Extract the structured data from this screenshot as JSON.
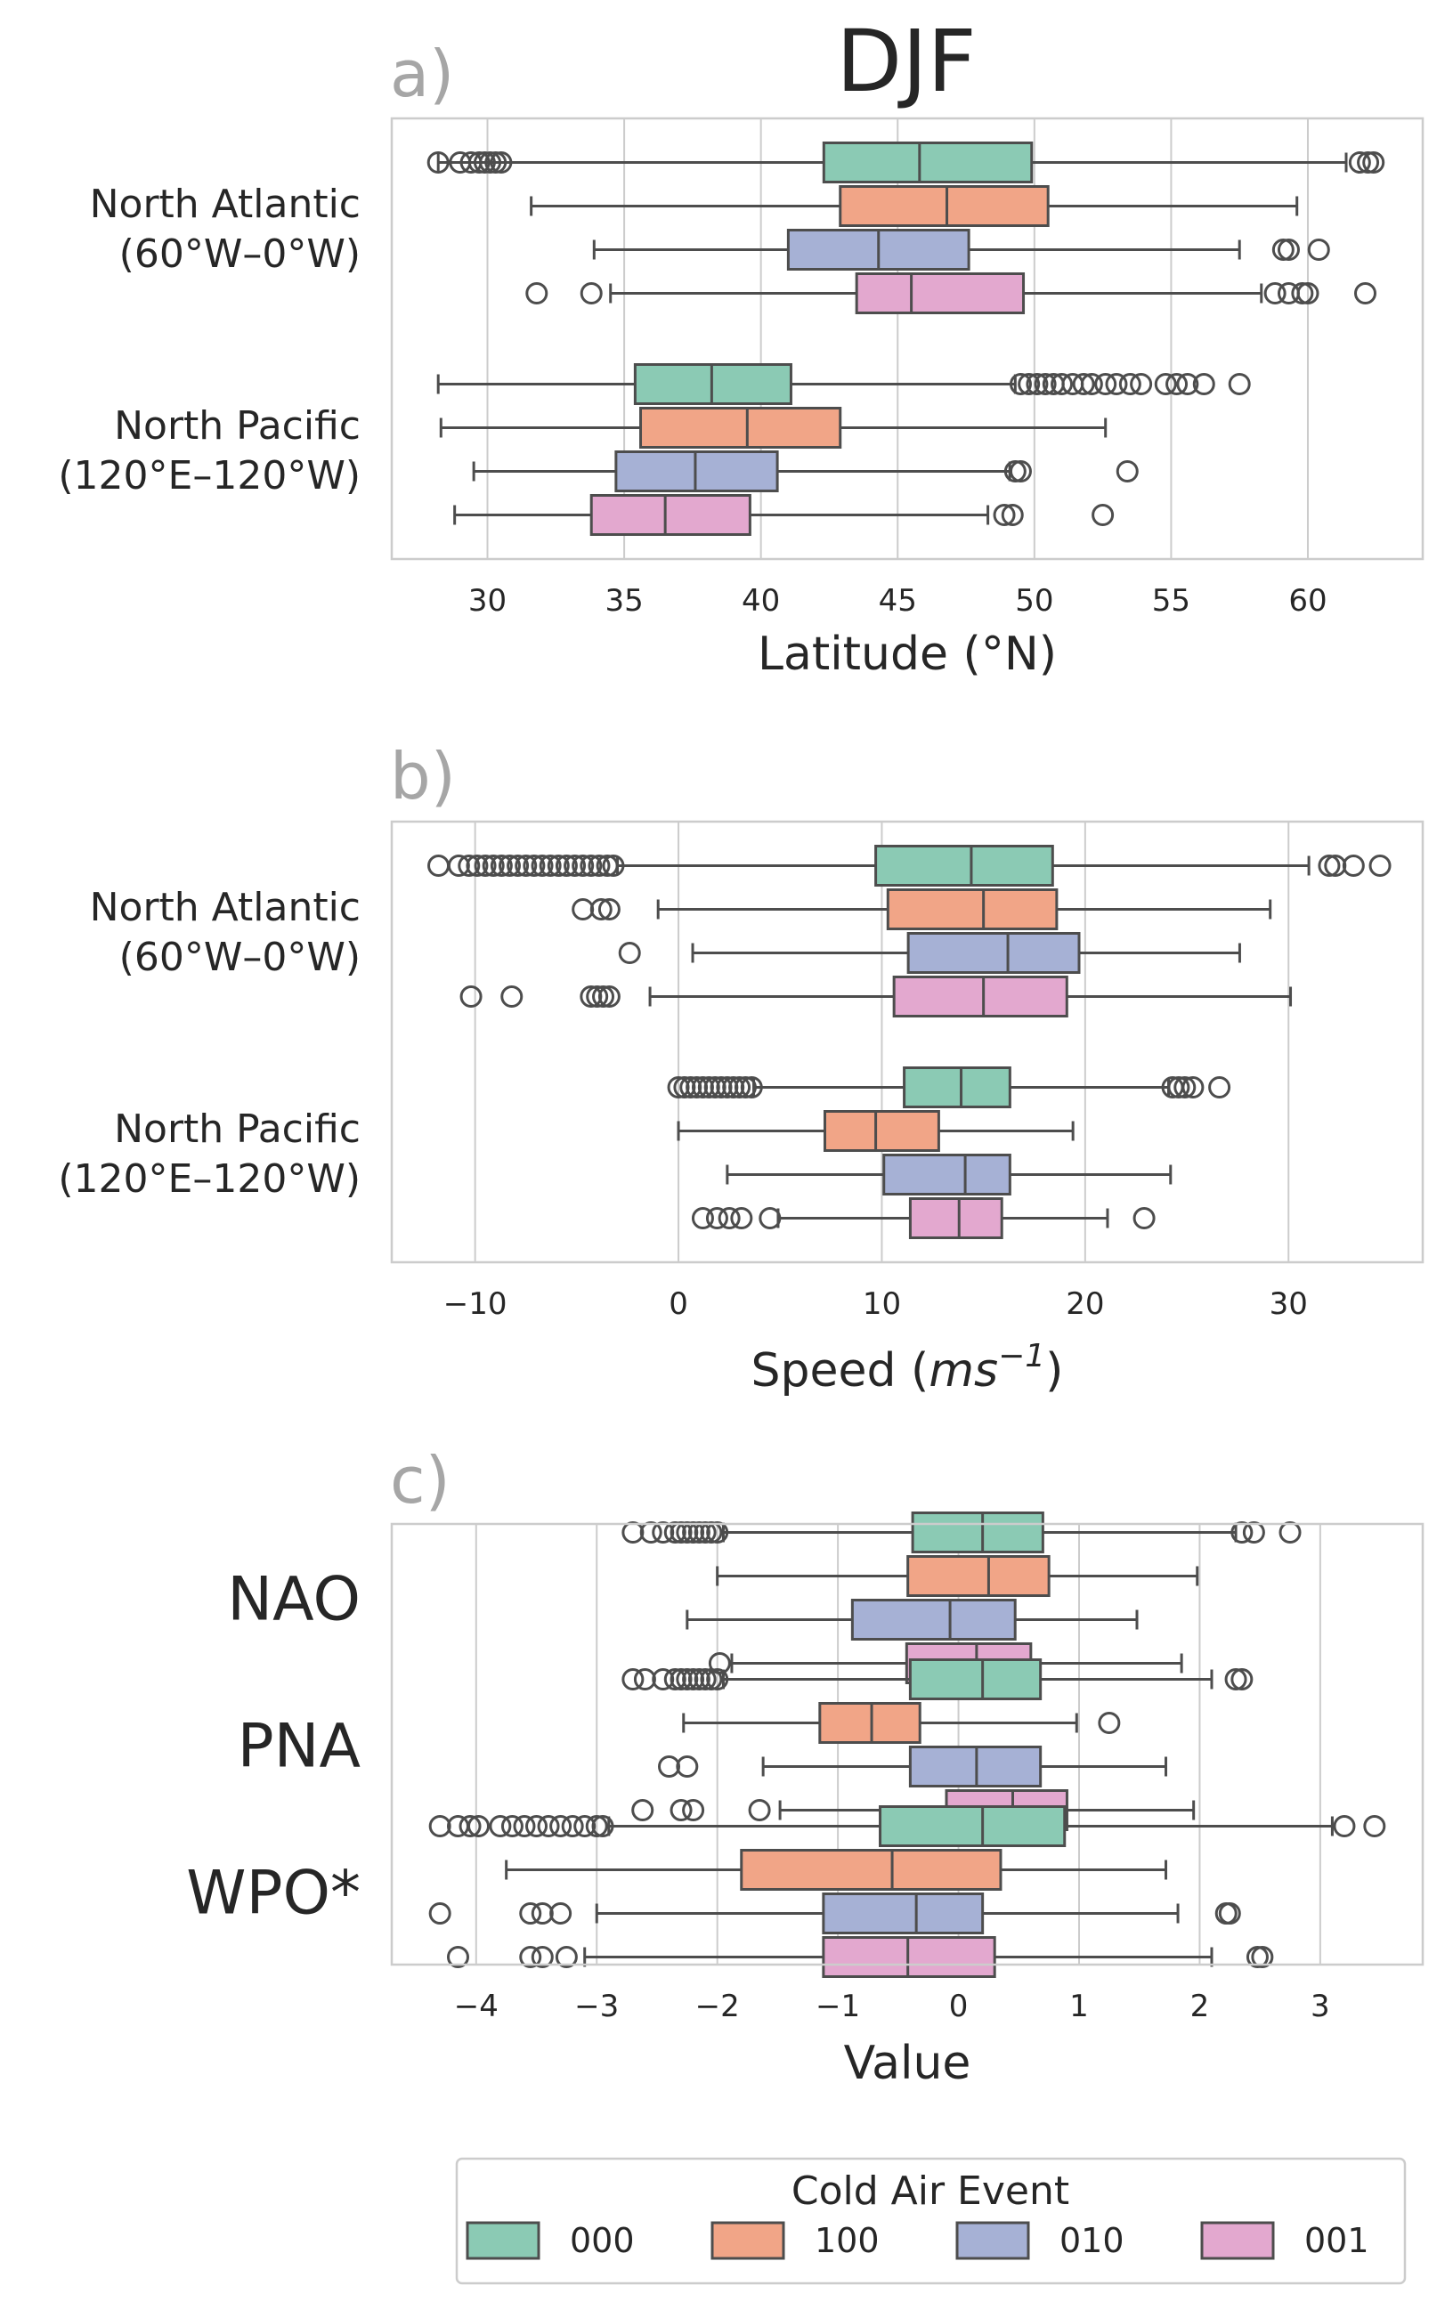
{
  "figure_title": "DJF",
  "colors": {
    "000": "#8bcab4",
    "100": "#f1a587",
    "010": "#a6b1d5",
    "001": "#e3a8cf",
    "grid": "#cccccc",
    "outline": "#4d4d4d"
  },
  "legend": {
    "title": "Cold Air Event",
    "entries": [
      "000",
      "100",
      "010",
      "001"
    ]
  },
  "chart_data": [
    {
      "type": "box",
      "panel_label": "a)",
      "title": "DJF",
      "xlabel": "Latitude (°N)",
      "ylabel": "",
      "xlim": [
        26.5,
        64.2
      ],
      "xticks": [
        30,
        35,
        40,
        45,
        50,
        55,
        60
      ],
      "xtick_labels": [
        "30",
        "35",
        "40",
        "45",
        "50",
        "55",
        "60"
      ],
      "grid": true,
      "orientation": "horizontal",
      "series_names": [
        "000",
        "100",
        "010",
        "001"
      ],
      "categories": [
        {
          "label_lines": [
            "North Atlantic",
            "(60°W–0°W)"
          ],
          "boxes": [
            {
              "series": "000",
              "whislo": 28.2,
              "q1": 42.3,
              "med": 45.8,
              "q3": 49.9,
              "whishi": 61.4,
              "fliers": [
                28.2,
                29.0,
                29.4,
                29.7,
                29.9,
                30.1,
                30.3,
                30.5,
                61.9,
                62.2,
                62.4
              ]
            },
            {
              "series": "100",
              "whislo": 31.6,
              "q1": 42.9,
              "med": 46.8,
              "q3": 50.5,
              "whishi": 59.6,
              "fliers": []
            },
            {
              "series": "010",
              "whislo": 33.9,
              "q1": 41.0,
              "med": 44.3,
              "q3": 47.6,
              "whishi": 57.5,
              "fliers": [
                59.1,
                59.3,
                60.4
              ]
            },
            {
              "series": "001",
              "whislo": 34.5,
              "q1": 43.5,
              "med": 45.5,
              "q3": 49.6,
              "whishi": 58.3,
              "fliers": [
                31.8,
                33.8,
                58.8,
                59.3,
                59.8,
                60.0,
                62.1
              ]
            }
          ]
        },
        {
          "label_lines": [
            "North Pacific",
            "(120°E–120°W)"
          ],
          "boxes": [
            {
              "series": "000",
              "whislo": 28.2,
              "q1": 35.4,
              "med": 38.2,
              "q3": 41.1,
              "whishi": 49.3,
              "fliers": [
                49.5,
                49.8,
                50.1,
                50.4,
                50.7,
                51.0,
                51.4,
                51.8,
                52.1,
                52.6,
                53.0,
                53.5,
                53.9,
                54.8,
                55.2,
                55.6,
                56.2,
                57.5
              ]
            },
            {
              "series": "100",
              "whislo": 28.3,
              "q1": 35.6,
              "med": 39.5,
              "q3": 42.9,
              "whishi": 52.6,
              "fliers": []
            },
            {
              "series": "010",
              "whislo": 29.5,
              "q1": 34.7,
              "med": 37.6,
              "q3": 40.6,
              "whishi": 49.1,
              "fliers": [
                49.3,
                49.5,
                53.4
              ]
            },
            {
              "series": "001",
              "whislo": 28.8,
              "q1": 33.8,
              "med": 36.5,
              "q3": 39.6,
              "whishi": 48.3,
              "fliers": [
                48.9,
                49.2,
                52.5
              ]
            }
          ]
        }
      ]
    },
    {
      "type": "box",
      "panel_label": "b)",
      "title": "",
      "xlabel_prefix": "Speed (",
      "xlabel_italic": "ms",
      "xlabel_sup": "−1",
      "xlabel_suffix": ")",
      "ylabel": "",
      "xlim": [
        -14.1,
        36.6
      ],
      "xticks": [
        -10,
        0,
        10,
        20,
        30
      ],
      "xtick_labels": [
        "−10",
        "0",
        "10",
        "20",
        "30"
      ],
      "grid": true,
      "orientation": "horizontal",
      "series_names": [
        "000",
        "100",
        "010",
        "001"
      ],
      "categories": [
        {
          "label_lines": [
            "North Atlantic",
            "(60°W–0°W)"
          ],
          "boxes": [
            {
              "series": "000",
              "whislo": -3.0,
              "q1": 9.7,
              "med": 14.4,
              "q3": 18.4,
              "whishi": 31.0,
              "fliers": [
                -11.8,
                -10.8,
                -10.3,
                -9.9,
                -9.5,
                -9.1,
                -8.7,
                -8.3,
                -7.9,
                -7.5,
                -7.1,
                -6.7,
                -6.3,
                -5.9,
                -5.5,
                -5.1,
                -4.7,
                -4.3,
                -3.9,
                -3.5,
                -3.2,
                32.0,
                32.3,
                33.2,
                34.5
              ]
            },
            {
              "series": "100",
              "whislo": -1.0,
              "q1": 10.3,
              "med": 15.0,
              "q3": 18.6,
              "whishi": 29.1,
              "fliers": [
                -4.7,
                -3.8,
                -3.4
              ]
            },
            {
              "series": "010",
              "whislo": 0.7,
              "q1": 11.3,
              "med": 16.2,
              "q3": 19.7,
              "whishi": 27.6,
              "fliers": [
                -2.4
              ]
            },
            {
              "series": "001",
              "whislo": -1.4,
              "q1": 10.6,
              "med": 15.0,
              "q3": 19.1,
              "whishi": 30.1,
              "fliers": [
                -10.2,
                -8.2,
                -4.3,
                -4.0,
                -3.7,
                -3.4
              ]
            }
          ]
        },
        {
          "label_lines": [
            "North Pacific",
            "(120°E–120°W)"
          ],
          "boxes": [
            {
              "series": "000",
              "whislo": 3.7,
              "q1": 11.1,
              "med": 13.9,
              "q3": 16.3,
              "whishi": 24.1,
              "fliers": [
                0.0,
                0.3,
                0.6,
                0.9,
                1.2,
                1.5,
                1.8,
                2.1,
                2.4,
                2.7,
                3.0,
                3.3,
                3.6,
                24.3,
                24.6,
                24.9,
                25.3,
                26.6
              ]
            },
            {
              "series": "100",
              "whislo": 0.0,
              "q1": 7.2,
              "med": 9.7,
              "q3": 12.8,
              "whishi": 19.4,
              "fliers": []
            },
            {
              "series": "010",
              "whislo": 2.4,
              "q1": 10.1,
              "med": 14.1,
              "q3": 16.3,
              "whishi": 24.2,
              "fliers": []
            },
            {
              "series": "001",
              "whislo": 4.9,
              "q1": 11.4,
              "med": 13.8,
              "q3": 15.9,
              "whishi": 21.1,
              "fliers": [
                1.2,
                1.9,
                2.5,
                3.1,
                4.5,
                22.9
              ]
            }
          ]
        }
      ]
    },
    {
      "type": "box",
      "panel_label": "c)",
      "title": "",
      "xlabel": "Value",
      "ylabel": "",
      "xlim": [
        -4.7,
        3.85
      ],
      "xticks": [
        -4,
        -3,
        -2,
        -1,
        0,
        1,
        2,
        3
      ],
      "xtick_labels": [
        "−4",
        "−3",
        "−2",
        "−1",
        "0",
        "1",
        "2",
        "3"
      ],
      "grid": true,
      "orientation": "horizontal",
      "series_names": [
        "000",
        "100",
        "010",
        "001"
      ],
      "categories": [
        {
          "label_lines": [
            "NAO"
          ],
          "boxes": [
            {
              "series": "000",
              "whislo": -1.95,
              "q1": -0.38,
              "med": 0.2,
              "q3": 0.7,
              "whishi": 2.3,
              "fliers": [
                -2.7,
                -2.55,
                -2.45,
                -2.35,
                -2.3,
                -2.25,
                -2.2,
                -2.15,
                -2.1,
                -2.05,
                -2.0,
                2.35,
                2.45,
                2.75
              ]
            },
            {
              "series": "100",
              "whislo": -2.0,
              "q1": -0.42,
              "med": 0.25,
              "q3": 0.75,
              "whishi": 1.98,
              "fliers": []
            },
            {
              "series": "010",
              "whislo": -2.25,
              "q1": -0.88,
              "med": -0.07,
              "q3": 0.47,
              "whishi": 1.48,
              "fliers": []
            },
            {
              "series": "001",
              "whislo": -1.88,
              "q1": -0.43,
              "med": 0.15,
              "q3": 0.6,
              "whishi": 1.85,
              "fliers": [
                -1.98
              ]
            }
          ]
        },
        {
          "label_lines": [
            "PNA"
          ],
          "boxes": [
            {
              "series": "000",
              "whislo": -1.95,
              "q1": -0.4,
              "med": 0.2,
              "q3": 0.68,
              "whishi": 2.1,
              "fliers": [
                -2.7,
                -2.6,
                -2.45,
                -2.35,
                -2.3,
                -2.25,
                -2.2,
                -2.15,
                -2.1,
                -2.05,
                -2.0,
                2.3,
                2.35
              ]
            },
            {
              "series": "100",
              "whislo": -2.28,
              "q1": -1.15,
              "med": -0.72,
              "q3": -0.32,
              "whishi": 0.98,
              "fliers": [
                1.25
              ]
            },
            {
              "series": "010",
              "whislo": -1.62,
              "q1": -0.4,
              "med": 0.15,
              "q3": 0.68,
              "whishi": 1.72,
              "fliers": [
                -2.4,
                -2.25
              ]
            },
            {
              "series": "001",
              "whislo": -1.48,
              "q1": -0.1,
              "med": 0.45,
              "q3": 0.9,
              "whishi": 1.95,
              "fliers": [
                -2.62,
                -2.3,
                -2.2,
                -1.65
              ]
            }
          ]
        },
        {
          "label_lines": [
            "WPO*"
          ],
          "boxes": [
            {
              "series": "000",
              "whislo": -2.9,
              "q1": -0.65,
              "med": 0.2,
              "q3": 0.88,
              "whishi": 3.1,
              "fliers": [
                -4.3,
                -4.15,
                -4.05,
                -3.98,
                -3.8,
                -3.7,
                -3.6,
                -3.5,
                -3.4,
                -3.3,
                -3.2,
                -3.1,
                -3.0,
                -2.95,
                3.2,
                3.45
              ]
            },
            {
              "series": "100",
              "whislo": -3.75,
              "q1": -1.8,
              "med": -0.55,
              "q3": 0.35,
              "whishi": 1.72,
              "fliers": []
            },
            {
              "series": "010",
              "whislo": -3.0,
              "q1": -1.12,
              "med": -0.35,
              "q3": 0.2,
              "whishi": 1.82,
              "fliers": [
                -4.3,
                -3.55,
                -3.45,
                -3.3,
                2.22,
                2.25
              ]
            },
            {
              "series": "001",
              "whislo": -3.1,
              "q1": -1.12,
              "med": -0.42,
              "q3": 0.3,
              "whishi": 2.1,
              "fliers": [
                -4.15,
                -3.55,
                -3.45,
                -3.25,
                2.48,
                2.52
              ]
            }
          ]
        }
      ]
    }
  ]
}
